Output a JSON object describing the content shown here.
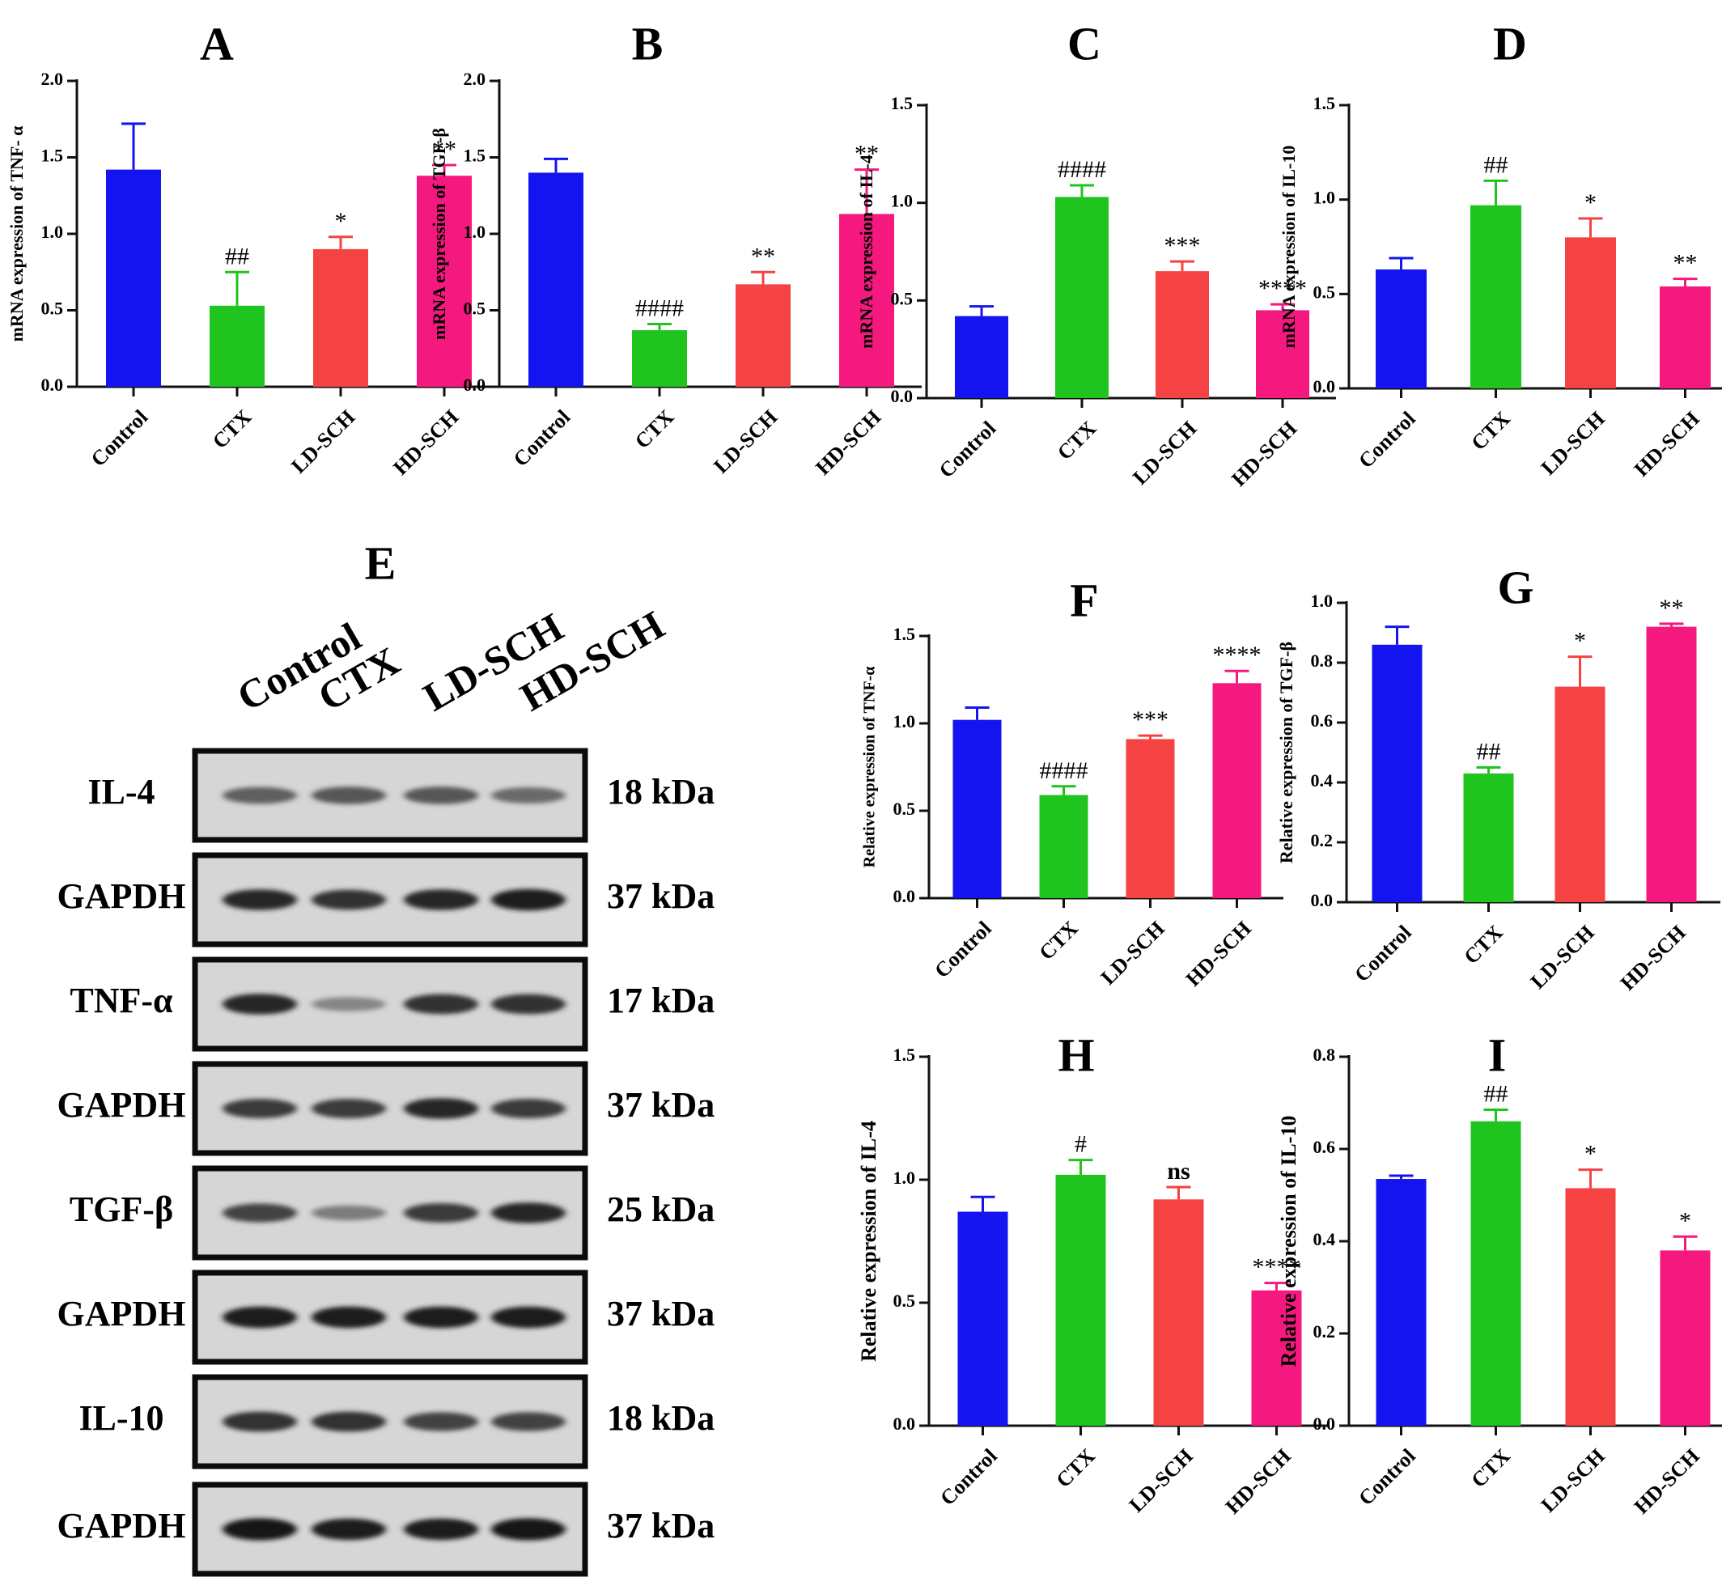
{
  "chart_data": [
    {
      "panel": "A",
      "type": "bar",
      "categories": [
        "Control",
        "CTX",
        "LD-SCH",
        "HD-SCH"
      ],
      "values": [
        1.42,
        0.53,
        0.9,
        1.38
      ],
      "errors": [
        0.3,
        0.22,
        0.08,
        0.07
      ],
      "significance": [
        "",
        "##",
        "*",
        "**"
      ],
      "ylabel": "mRNA expression of TNF- α",
      "ylim": [
        0,
        2.0
      ],
      "ticks": [
        0.0,
        0.5,
        1.0,
        1.5,
        2.0
      ],
      "tick_labels": [
        "0.0",
        "0.5",
        "1.0",
        "1.5",
        "2.0"
      ]
    },
    {
      "panel": "B",
      "type": "bar",
      "categories": [
        "Control",
        "CTX",
        "LD-SCH",
        "HD-SCH"
      ],
      "values": [
        1.4,
        0.37,
        0.67,
        1.13
      ],
      "errors": [
        0.09,
        0.04,
        0.08,
        0.29
      ],
      "significance": [
        "",
        "####",
        "**",
        "**"
      ],
      "ylabel": "mRNA expression of  TGF-β",
      "ylim": [
        0,
        2.0
      ],
      "ticks": [
        0.0,
        0.5,
        1.0,
        1.5,
        2.0
      ],
      "tick_labels": [
        "0.0",
        "0.5",
        "1.0",
        "1.5",
        "2.0"
      ]
    },
    {
      "panel": "C",
      "type": "bar",
      "categories": [
        "Control",
        "CTX",
        "LD-SCH",
        "HD-SCH"
      ],
      "values": [
        0.42,
        1.03,
        0.65,
        0.45
      ],
      "errors": [
        0.05,
        0.06,
        0.05,
        0.03
      ],
      "significance": [
        "",
        "####",
        "***",
        "****"
      ],
      "ylabel": "mRNA expression of IL-4",
      "ylim": [
        0,
        1.5
      ],
      "ticks": [
        0.0,
        0.5,
        1.0,
        1.5
      ],
      "tick_labels": [
        "0.0",
        "0.5",
        "1.0",
        "1.5"
      ]
    },
    {
      "panel": "D",
      "type": "bar",
      "categories": [
        "Control",
        "CTX",
        "LD-SCH",
        "HD-SCH"
      ],
      "values": [
        0.63,
        0.97,
        0.8,
        0.54
      ],
      "errors": [
        0.06,
        0.13,
        0.1,
        0.04
      ],
      "significance": [
        "",
        "##",
        "*",
        "**"
      ],
      "ylabel": "mRNA expression of IL-10",
      "ylim": [
        0,
        1.5
      ],
      "ticks": [
        0.0,
        0.5,
        1.0,
        1.5
      ],
      "tick_labels": [
        "0.0",
        "0.5",
        "1.0",
        "1.5"
      ]
    },
    {
      "panel": "F",
      "type": "bar",
      "categories": [
        "Control",
        "CTX",
        "LD-SCH",
        "HD-SCH"
      ],
      "values": [
        1.02,
        0.59,
        0.91,
        1.23
      ],
      "errors": [
        0.07,
        0.05,
        0.02,
        0.07
      ],
      "significance": [
        "",
        "####",
        "***",
        "****"
      ],
      "ylabel": "Relative expression of TNF-α",
      "ylim": [
        0,
        1.5
      ],
      "ticks": [
        0.0,
        0.5,
        1.0,
        1.5
      ],
      "tick_labels": [
        "0.0",
        "0.5",
        "1.0",
        "1.5"
      ]
    },
    {
      "panel": "G",
      "type": "bar",
      "categories": [
        "Control",
        "CTX",
        "LD-SCH",
        "HD-SCH"
      ],
      "values": [
        0.86,
        0.43,
        0.72,
        0.92
      ],
      "errors": [
        0.06,
        0.02,
        0.1,
        0.01
      ],
      "significance": [
        "",
        "##",
        "*",
        "**"
      ],
      "ylabel": "Relative expression of TGF-β",
      "ylim": [
        0,
        1.0
      ],
      "ticks": [
        0.0,
        0.2,
        0.4,
        0.6,
        0.8,
        1.0
      ],
      "tick_labels": [
        "0.0",
        "0.2",
        "0.4",
        "0.6",
        "0.8",
        "1.0"
      ]
    },
    {
      "panel": "H",
      "type": "bar",
      "categories": [
        "Control",
        "CTX",
        "LD-SCH",
        "HD-SCH"
      ],
      "values": [
        0.87,
        1.02,
        0.92,
        0.55
      ],
      "errors": [
        0.06,
        0.06,
        0.05,
        0.03
      ],
      "significance": [
        "",
        "#",
        "ns",
        "****"
      ],
      "ylabel": "Relative expression of IL-4",
      "ylim": [
        0,
        1.5
      ],
      "ticks": [
        0.0,
        0.5,
        1.0,
        1.5
      ],
      "tick_labels": [
        "0.0",
        "0.5",
        "1.0",
        "1.5"
      ]
    },
    {
      "panel": "I",
      "type": "bar",
      "categories": [
        "Control",
        "CTX",
        "LD-SCH",
        "HD-SCH"
      ],
      "values": [
        0.535,
        0.66,
        0.515,
        0.38
      ],
      "errors": [
        0.007,
        0.025,
        0.04,
        0.03
      ],
      "significance": [
        "",
        "##",
        "*",
        "*"
      ],
      "ylabel": "Relative expression of IL-10",
      "ylim": [
        0,
        0.8
      ],
      "ticks": [
        0.0,
        0.2,
        0.4,
        0.6,
        0.8
      ],
      "tick_labels": [
        "0.0",
        "0.2",
        "0.4",
        "0.6",
        "0.8"
      ]
    }
  ],
  "bar_colors": [
    "#1414f0",
    "#1fc41f",
    "#f54242",
    "#f5197f"
  ],
  "blot": {
    "panel": "E",
    "lanes": [
      "Control",
      "CTX",
      "LD-SCH",
      "HD-SCH"
    ],
    "rows": [
      {
        "protein": "IL-4",
        "size": "18 kDa",
        "intensity": [
          0.55,
          0.6,
          0.6,
          0.5
        ]
      },
      {
        "protein": "GAPDH",
        "size": "37 kDa",
        "intensity": [
          0.85,
          0.8,
          0.85,
          0.9
        ]
      },
      {
        "protein": "TNF-α",
        "size": "17 kDa",
        "intensity": [
          0.85,
          0.35,
          0.8,
          0.8
        ]
      },
      {
        "protein": "GAPDH",
        "size": "37 kDa",
        "intensity": [
          0.75,
          0.75,
          0.85,
          0.75
        ]
      },
      {
        "protein": "TGF-β",
        "size": "25 kDa",
        "intensity": [
          0.7,
          0.4,
          0.75,
          0.85
        ]
      },
      {
        "protein": "GAPDH",
        "size": "37 kDa",
        "intensity": [
          0.9,
          0.9,
          0.9,
          0.9
        ]
      },
      {
        "protein": "IL-10",
        "size": "18 kDa",
        "intensity": [
          0.8,
          0.8,
          0.7,
          0.7
        ]
      },
      {
        "protein": "GAPDH",
        "size": "37 kDa",
        "intensity": [
          0.95,
          0.9,
          0.9,
          0.95
        ]
      }
    ]
  }
}
